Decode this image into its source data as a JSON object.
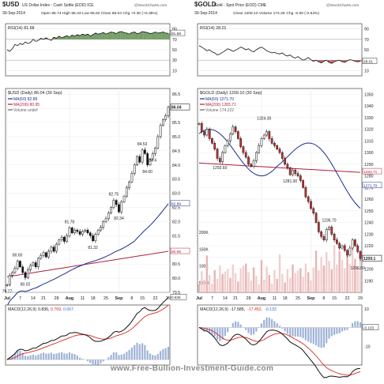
{
  "footer": {
    "watermark": "www.Free-Bullion-Investment-Guide.com"
  },
  "chart_data": [
    {
      "type": "financial-chart",
      "symbol": "$USD",
      "name": "US Dollar Index - Cash Settle (EOD) ICE",
      "date": "30-Sep-2014",
      "quote": {
        "open": "85.74",
        "high": "86.33",
        "low": "85.62",
        "close": "86.04",
        "chg": "+0.30 (+0.35%)"
      },
      "credit": "@StockCharts.com",
      "x_labels": [
        "Jul",
        "7",
        "14",
        "21",
        "28",
        "Aug",
        "11",
        "18",
        "25",
        "Sep",
        "8",
        "15",
        "22",
        "29"
      ],
      "rsi": {
        "label": "RSI(14) 81.68",
        "value": 81.68,
        "levels": [
          90,
          70,
          50,
          30,
          10
        ],
        "ylim": [
          0,
          100
        ],
        "values": [
          50,
          47,
          52,
          60,
          58,
          62,
          60,
          65,
          62,
          64,
          70,
          66,
          68,
          72,
          70,
          73,
          70,
          68,
          74,
          72,
          76,
          73,
          75,
          77,
          74,
          78,
          76,
          79,
          77,
          80,
          78,
          80,
          76,
          79,
          82,
          80,
          81,
          83,
          80,
          82,
          84,
          83,
          81,
          84,
          85,
          83,
          82,
          80,
          83,
          84,
          81,
          82,
          85,
          84,
          83,
          81,
          82,
          84,
          82,
          83,
          84,
          82,
          81.68
        ]
      },
      "price": {
        "title": "$USD (Daily) 86.04 (30 Sep)",
        "ylim": [
          79.5,
          86.7
        ],
        "last": 86.04,
        "ticks": [
          86.5,
          86.0,
          85.5,
          85.0,
          84.5,
          84.0,
          83.5,
          83.0,
          82.5,
          82.0,
          81.5,
          81.0,
          80.5,
          80.0,
          79.5
        ],
        "ma_labels": [
          "MA(50) 82.89",
          "MA(200) 80.95",
          "Volume undef"
        ],
        "right_labels": [
          "82.89",
          "80.95"
        ],
        "close": [
          79.77,
          80.1,
          80.2,
          80.35,
          80.6,
          80.4,
          80.2,
          80.02,
          80.3,
          80.45,
          80.55,
          80.4,
          80.7,
          80.8,
          80.9,
          80.75,
          80.95,
          81.1,
          80.95,
          81.2,
          81.35,
          81.45,
          81.3,
          81.5,
          81.78,
          81.6,
          81.7,
          81.65,
          81.55,
          81.65,
          81.7,
          81.6,
          81.5,
          81.32,
          81.55,
          81.7,
          81.8,
          82.0,
          82.1,
          82.3,
          82.5,
          82.75,
          82.6,
          82.34,
          82.7,
          82.9,
          83.2,
          83.4,
          83.7,
          84.0,
          84.3,
          84.1,
          84.53,
          84.4,
          84.0,
          84.2,
          84.4,
          84.6,
          85.0,
          85.4,
          85.6,
          85.74,
          86.04
        ],
        "annotations": [
          {
            "text": "80.60",
            "index": 4,
            "value": 80.6,
            "pos": "above"
          },
          {
            "text": "79.77",
            "index": 0,
            "value": 79.77,
            "pos": "below"
          },
          {
            "text": "80.02",
            "index": 7,
            "value": 80.02,
            "pos": "below"
          },
          {
            "text": "81.78",
            "index": 24,
            "value": 81.78,
            "pos": "above"
          },
          {
            "text": "81.32",
            "index": 33,
            "value": 81.32,
            "pos": "below"
          },
          {
            "text": "82.75",
            "index": 41,
            "value": 82.75,
            "pos": "above"
          },
          {
            "text": "82.34",
            "index": 43,
            "value": 82.34,
            "pos": "below"
          },
          {
            "text": "84.53",
            "index": 52,
            "value": 84.53,
            "pos": "above"
          },
          {
            "text": "84.00",
            "index": 54,
            "value": 84.0,
            "pos": "below"
          },
          {
            "text": "84.4",
            "index": 56,
            "value": 84.4,
            "pos": "below"
          }
        ]
      },
      "macd": {
        "label": "MACD(12,26,9) 0.836, 0.769, 0.067",
        "values": [
          "0.836",
          "0.769",
          "0.067"
        ],
        "ylim": [
          -0.1,
          1.0
        ]
      }
    },
    {
      "type": "financial-chart",
      "symbol": "$GOLD",
      "name": "Gold - Spot Price (EOD) CME",
      "date": "30-Sep-2014",
      "quote": {
        "close": "1209.10",
        "volume": "174.2K",
        "chg": "-6.60 (-0.54%)"
      },
      "credit": "@StockCharts.com",
      "x_labels": [
        "Jul",
        "7",
        "14",
        "21",
        "28",
        "Aug",
        "11",
        "18",
        "25",
        "Sep",
        "8",
        "15",
        "22",
        "29"
      ],
      "rsi": {
        "label": "RSI(14) 28.01",
        "value": 28.01,
        "levels": [
          90,
          70,
          50,
          30,
          10
        ],
        "ylim": [
          0,
          100
        ],
        "values": [
          58,
          55,
          52,
          48,
          50,
          46,
          44,
          40,
          42,
          45,
          48,
          52,
          50,
          47,
          49,
          52,
          55,
          53,
          50,
          52,
          48,
          46,
          50,
          53,
          55,
          52,
          48,
          46,
          44,
          45,
          43,
          42,
          44,
          40,
          38,
          40,
          36,
          34,
          37,
          33,
          30,
          32,
          35,
          31,
          28,
          30,
          27,
          25,
          28,
          30,
          26,
          24,
          27,
          29,
          30,
          27,
          26,
          29,
          31,
          30,
          28,
          27,
          28.01
        ]
      },
      "price": {
        "title": "$GOLD (Daily) 1209.10 (30 Sep)",
        "ylim": [
          1180,
          1355
        ],
        "last": 1209.1,
        "ticks": [
          1350,
          1340,
          1330,
          1320,
          1310,
          1300,
          1290,
          1280,
          1270,
          1260,
          1250,
          1240,
          1230,
          1220,
          1210,
          1200,
          1190
        ],
        "ma_labels": [
          "MA(50) 1271.70",
          "MA(200) 1283.71",
          "Volume 174,222"
        ],
        "right_labels": [
          "1283.71",
          "1271.70",
          "1209.1"
        ],
        "volume_ticks": [
          "200K",
          "150K",
          "100K",
          "50000"
        ],
        "close": [
          1325,
          1318,
          1315,
          1320,
          1312,
          1308,
          1303,
          1295,
          1292,
          1300,
          1306,
          1310,
          1316,
          1322,
          1318,
          1312,
          1305,
          1300,
          1296,
          1290,
          1288,
          1293,
          1300,
          1306,
          1312,
          1315,
          1318,
          1312,
          1308,
          1306,
          1303,
          1300,
          1295,
          1290,
          1287,
          1281,
          1285,
          1282,
          1280,
          1276,
          1270,
          1262,
          1258,
          1252,
          1248,
          1240,
          1232,
          1228,
          1225,
          1234,
          1236,
          1230,
          1225,
          1222,
          1218,
          1220,
          1216,
          1212,
          1218,
          1225,
          1220,
          1215,
          1209.1
        ],
        "annotations": [
          {
            "text": "1292.60",
            "index": 8,
            "value": 1292.6,
            "pos": "below"
          },
          {
            "text": "1324.30",
            "index": 25,
            "value": 1324.3,
            "pos": "above"
          },
          {
            "text": "1281.00",
            "index": 35,
            "value": 1281.0,
            "pos": "below"
          },
          {
            "text": "1236.70",
            "index": 50,
            "value": 1236.7,
            "pos": "above"
          },
          {
            "text": "1206.60",
            "index": 61,
            "value": 1206.6,
            "pos": "below"
          }
        ]
      },
      "macd": {
        "label": "MACD(12,26,9) -17.585, -17.452, -0.133",
        "values": [
          "-17.585",
          "-17.452",
          "-0.133"
        ],
        "ylim": [
          -20,
          12
        ],
        "ticks": [
          "10",
          "0",
          "-10"
        ]
      }
    }
  ]
}
